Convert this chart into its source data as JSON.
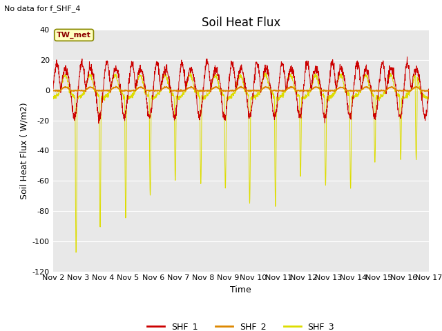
{
  "title": "Soil Heat Flux",
  "xlabel": "Time",
  "ylabel": "Soil Heat Flux ( W/m2)",
  "ylim": [
    -120,
    40
  ],
  "yticks": [
    -120,
    -100,
    -80,
    -60,
    -40,
    -20,
    0,
    20,
    40
  ],
  "no_data_text": "No data for f_SHF_4",
  "legend_label": "TW_met",
  "series_labels": [
    "SHF_1",
    "SHF_2",
    "SHF_3"
  ],
  "series_colors": [
    "#cc0000",
    "#dd8800",
    "#dddd00"
  ],
  "background_color": "#e8e8e8",
  "figure_color": "#ffffff",
  "n_points": 2160,
  "xtick_days": [
    2,
    3,
    4,
    5,
    6,
    7,
    8,
    9,
    10,
    11,
    12,
    13,
    14,
    15,
    16,
    17
  ],
  "title_fontsize": 12,
  "axis_label_fontsize": 9,
  "tick_fontsize": 8
}
